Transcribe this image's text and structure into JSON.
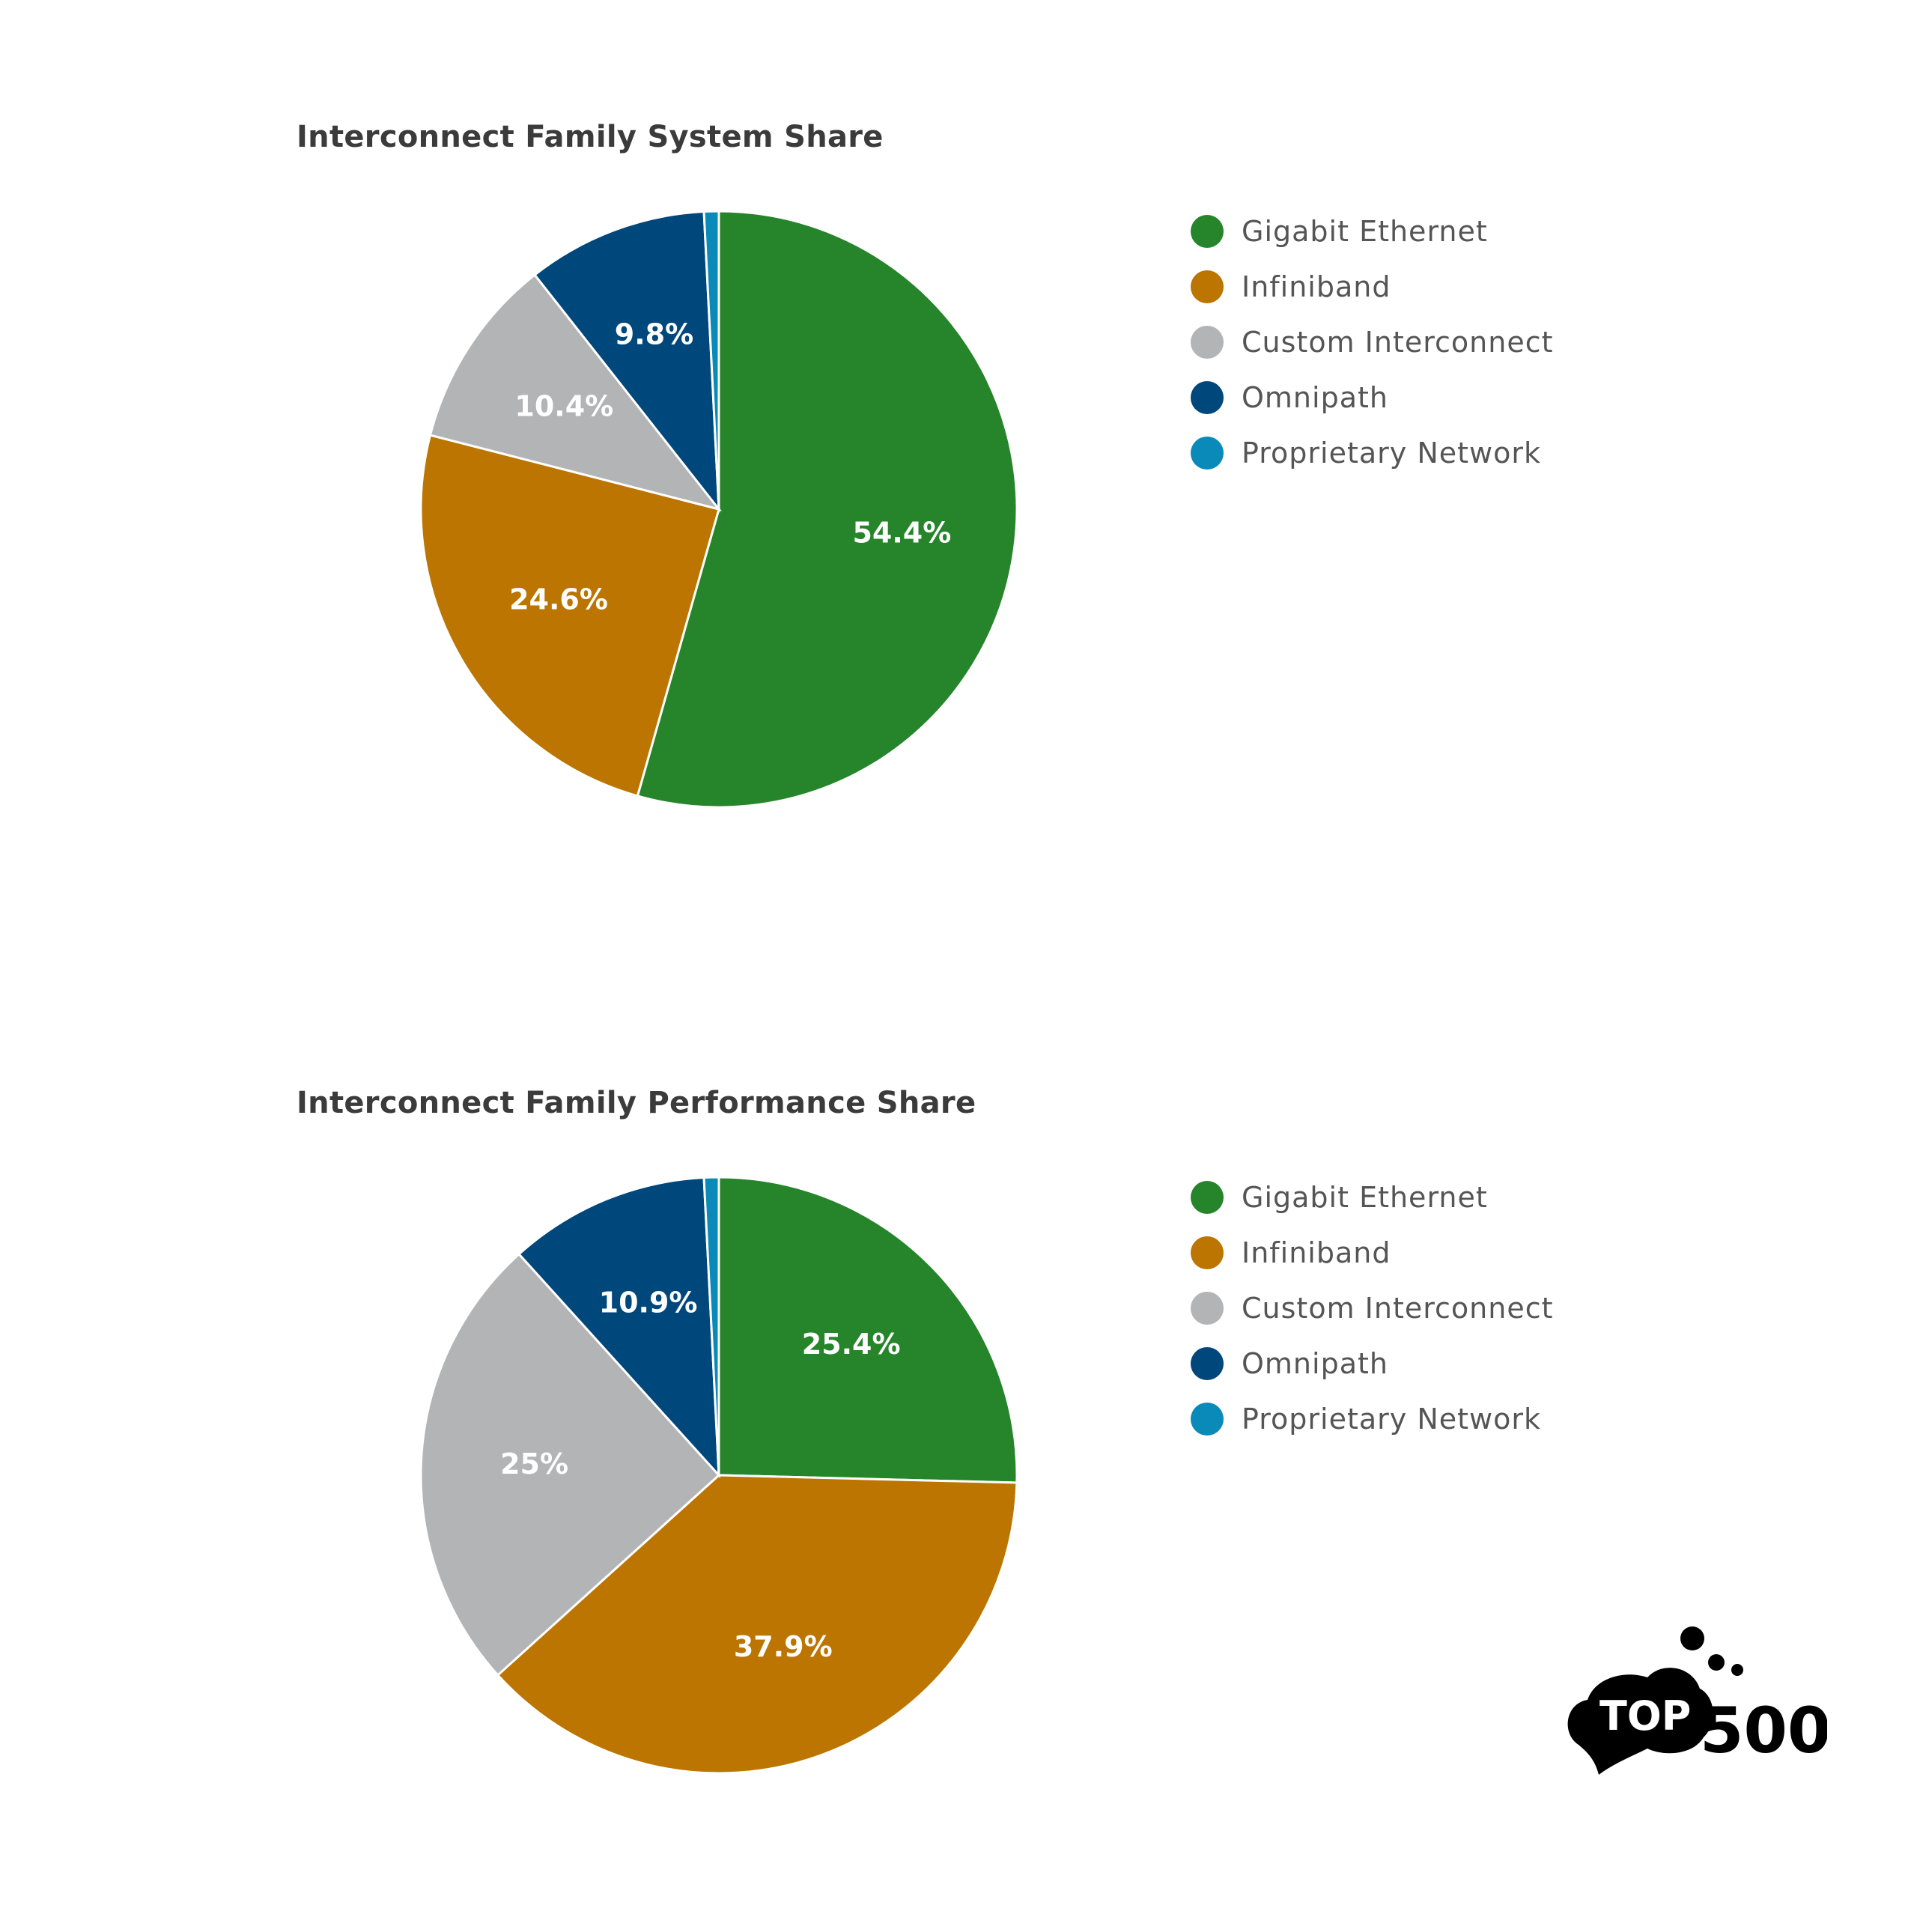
{
  "chart_data": [
    {
      "type": "pie",
      "title": "Interconnect Family System Share",
      "categories": [
        "Gigabit Ethernet",
        "Infiniband",
        "Custom Interconnect",
        "Omnipath",
        "Proprietary Network"
      ],
      "values": [
        54.4,
        24.6,
        10.4,
        9.8,
        0.8
      ],
      "value_labels": [
        "54.4%",
        "24.6%",
        "10.4%",
        "9.8%",
        ""
      ],
      "colors": [
        "#26852b",
        "#bb7500",
        "#b2b4b6",
        "#00477c",
        "#0a8ab8"
      ],
      "legend_position": "right"
    },
    {
      "type": "pie",
      "title": "Interconnect Family Performance Share",
      "categories": [
        "Gigabit Ethernet",
        "Infiniband",
        "Custom Interconnect",
        "Omnipath",
        "Proprietary Network"
      ],
      "values": [
        25.4,
        37.9,
        25.0,
        10.9,
        0.8
      ],
      "value_labels": [
        "25.4%",
        "37.9%",
        "25%",
        "10.9%",
        ""
      ],
      "colors": [
        "#26852b",
        "#bb7500",
        "#b2b4b6",
        "#00477c",
        "#0a8ab8"
      ],
      "legend_position": "right"
    }
  ],
  "logo": {
    "top_text": "TOP",
    "bottom_text": "500"
  }
}
